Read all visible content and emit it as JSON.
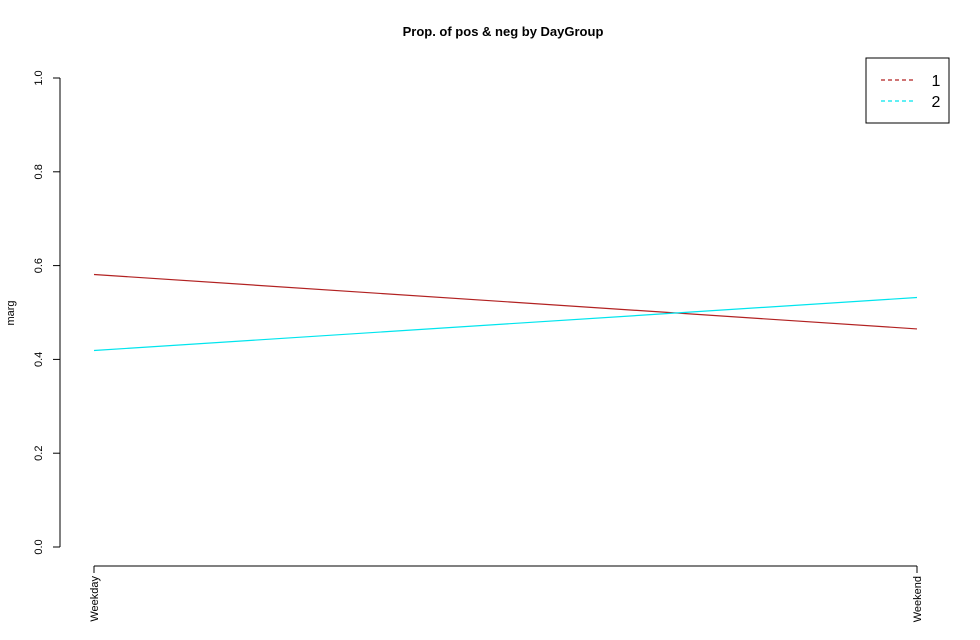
{
  "chart_data": {
    "type": "line",
    "title": "Prop. of pos & neg by DayGroup",
    "xlabel": "",
    "ylabel": "marg",
    "categories": [
      "Weekday",
      "Weekend"
    ],
    "ylim": [
      0,
      1
    ],
    "yticks": [
      "0.0",
      "0.2",
      "0.4",
      "0.6",
      "0.8",
      "1.0"
    ],
    "grid": false,
    "legend_position": "top-right",
    "series": [
      {
        "name": "1",
        "values": [
          0.581,
          0.465
        ],
        "color": "#b22222"
      },
      {
        "name": "2",
        "values": [
          0.419,
          0.532
        ],
        "color": "#00e5ee"
      }
    ]
  }
}
